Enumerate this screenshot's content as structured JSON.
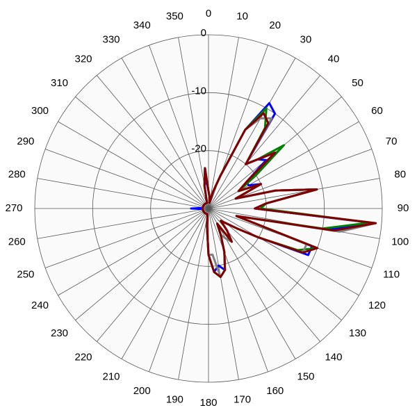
{
  "chart_data": {
    "type": "polar",
    "theta": [
      0,
      5,
      10,
      15,
      20,
      25,
      30,
      35,
      40,
      45,
      50,
      55,
      60,
      65,
      70,
      75,
      80,
      85,
      90,
      95,
      100,
      105,
      110,
      115,
      120,
      125,
      130,
      135,
      140,
      145,
      150,
      155,
      160,
      165,
      170,
      175,
      180,
      185,
      190,
      195,
      200,
      205,
      210,
      215,
      220,
      225,
      230,
      235,
      240,
      245,
      250,
      255,
      260,
      265,
      270,
      275,
      280,
      285,
      290,
      295,
      300,
      305,
      310,
      315,
      320,
      325,
      330,
      335,
      340,
      345,
      350,
      355
    ],
    "thetaticks": [
      0,
      10,
      20,
      30,
      40,
      50,
      60,
      70,
      80,
      90,
      100,
      110,
      120,
      130,
      140,
      150,
      160,
      170,
      180,
      190,
      200,
      210,
      220,
      230,
      240,
      250,
      260,
      270,
      280,
      290,
      300,
      310,
      320,
      330,
      340,
      350
    ],
    "rlim": [
      -30,
      0
    ],
    "rticks": [
      -20,
      -10,
      0
    ],
    "grid": true,
    "series": [
      {
        "color": "#0000ff",
        "values": [
          -27,
          -28,
          -29,
          -27,
          -24,
          -15,
          -9,
          -10,
          -20,
          -18,
          -17,
          -22,
          -22,
          -20,
          -25,
          -18,
          -11,
          -20,
          -22,
          -2,
          -9,
          -25,
          -11,
          -11,
          -20,
          -24,
          -26,
          -27,
          -25,
          -23,
          -27,
          -25,
          -22,
          -19,
          -20,
          -19,
          -22,
          -27,
          -29,
          -29,
          -29,
          -29,
          -29,
          -29,
          -29,
          -29,
          -29,
          -29,
          -29,
          -29,
          -29,
          -29,
          -29,
          -29,
          -27,
          -29,
          -29,
          -29,
          -29,
          -29,
          -29,
          -29,
          -29,
          -29,
          -29,
          -29,
          -29,
          -29,
          -29,
          -29,
          -26,
          -25
        ]
      },
      {
        "color": "#008000",
        "values": [
          -27,
          -28,
          -29,
          -27,
          -24,
          -15,
          -10,
          -13,
          -20,
          -18,
          -13,
          -20,
          -24,
          -20,
          -25,
          -18,
          -11,
          -20,
          -21,
          -2,
          -10,
          -25,
          -10,
          -13,
          -20,
          -24,
          -26,
          -27,
          -25,
          -23,
          -27,
          -25,
          -22,
          -19,
          -18,
          -19,
          -22,
          -27,
          -29,
          -29,
          -29,
          -29,
          -29,
          -29,
          -29,
          -29,
          -29,
          -29,
          -29,
          -29,
          -29,
          -29,
          -29,
          -29,
          -29,
          -29,
          -29,
          -29,
          -29,
          -29,
          -29,
          -29,
          -29,
          -29,
          -29,
          -29,
          -29,
          -29,
          -29,
          -29,
          -26,
          -23
        ]
      },
      {
        "color": "#808080",
        "values": [
          -27,
          -28,
          -29,
          -27,
          -24,
          -15,
          -12,
          -11,
          -20,
          -18,
          -15,
          -22,
          -24,
          -20,
          -25,
          -18,
          -11,
          -20,
          -22,
          -1,
          -7,
          -25,
          -12,
          -12,
          -20,
          -24,
          -26,
          -27,
          -25,
          -23,
          -24,
          -25,
          -22,
          -19,
          -18,
          -22,
          -22,
          -27,
          -29,
          -29,
          -29,
          -29,
          -29,
          -29,
          -29,
          -29,
          -29,
          -29,
          -29,
          -29,
          -29,
          -29,
          -29,
          -29,
          -29,
          -29,
          -29,
          -29,
          -29,
          -29,
          -29,
          -29,
          -29,
          -29,
          -29,
          -29,
          -29,
          -29,
          -29,
          -29,
          -26,
          -23
        ]
      },
      {
        "color": "#800000",
        "values": [
          -27,
          -28,
          -29,
          -27,
          -24,
          -15,
          -11,
          -12,
          -20,
          -18,
          -15,
          -22,
          -24,
          -20,
          -25,
          -18,
          -11,
          -20,
          -22,
          -1,
          -8,
          -25,
          -10,
          -12,
          -20,
          -24,
          -26,
          -27,
          -25,
          -23,
          -27,
          -25,
          -22,
          -19,
          -18,
          -19,
          -22,
          -27,
          -29,
          -29,
          -29,
          -29,
          -29,
          -29,
          -29,
          -29,
          -29,
          -29,
          -29,
          -29,
          -29,
          -29,
          -29,
          -29,
          -29,
          -29,
          -29,
          -29,
          -29,
          -29,
          -29,
          -29,
          -29,
          -29,
          -29,
          -29,
          -29,
          -29,
          -29,
          -29,
          -26,
          -23
        ]
      }
    ]
  }
}
